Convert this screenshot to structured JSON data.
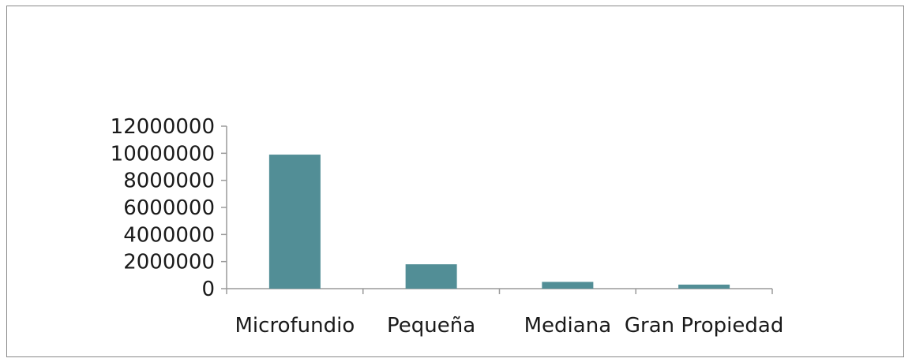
{
  "chart_data": {
    "type": "bar",
    "categories": [
      "Microfundio",
      "Pequeña",
      "Mediana",
      "Gran Propiedad"
    ],
    "values": [
      9900000,
      1800000,
      500000,
      300000
    ],
    "ylim": [
      0,
      12000000
    ],
    "yticks": [
      "0",
      "2000000",
      "4000000",
      "6000000",
      "8000000",
      "10000000",
      "12000000"
    ],
    "ytick_values": [
      0,
      2000000,
      4000000,
      6000000,
      8000000,
      10000000,
      12000000
    ],
    "title": "",
    "xlabel": "",
    "ylabel": "",
    "grid": false,
    "legend": "none",
    "bar_color": "#528e96",
    "axis_color": "#9a9a9a"
  }
}
